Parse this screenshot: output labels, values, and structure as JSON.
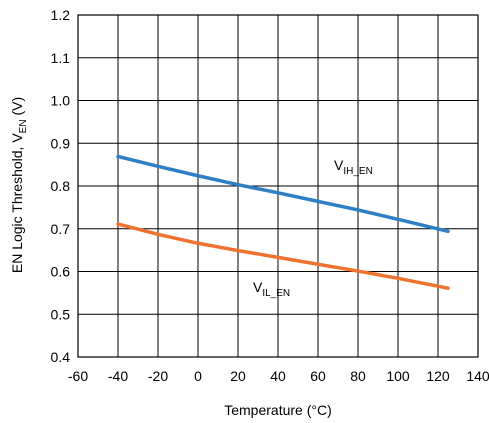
{
  "chart_data": {
    "type": "line",
    "xlabel": "Temperature (°C)",
    "ylabel": {
      "main": "EN Logic Threshold, V",
      "sub": "EN",
      "unit": " (V)"
    },
    "xlim": [
      -60,
      140
    ],
    "ylim": [
      0.4,
      1.2
    ],
    "xticks": [
      -60,
      -40,
      -20,
      0,
      20,
      40,
      60,
      80,
      100,
      120,
      140
    ],
    "yticks": [
      0.4,
      0.5,
      0.6,
      0.7,
      0.8,
      0.9,
      1.0,
      1.1,
      1.2
    ],
    "ytick_labels": [
      "0.4",
      "0.5",
      "0.6",
      "0.7",
      "0.8",
      "0.9",
      "1.0",
      "1.1",
      "1.2"
    ],
    "grid": true,
    "series": [
      {
        "label_main": "V",
        "label_sub": "IH_EN",
        "color": "#2e7fc4",
        "x": [
          -40,
          -20,
          0,
          20,
          40,
          60,
          80,
          100,
          125
        ],
        "y": [
          0.869,
          0.846,
          0.824,
          0.803,
          0.784,
          0.764,
          0.744,
          0.722,
          0.694
        ]
      },
      {
        "label_main": "V",
        "label_sub": "IL_EN",
        "color": "#ee7230",
        "x": [
          -40,
          -20,
          0,
          20,
          40,
          60,
          80,
          100,
          125
        ],
        "y": [
          0.711,
          0.687,
          0.666,
          0.649,
          0.633,
          0.617,
          0.601,
          0.584,
          0.561
        ]
      }
    ]
  }
}
